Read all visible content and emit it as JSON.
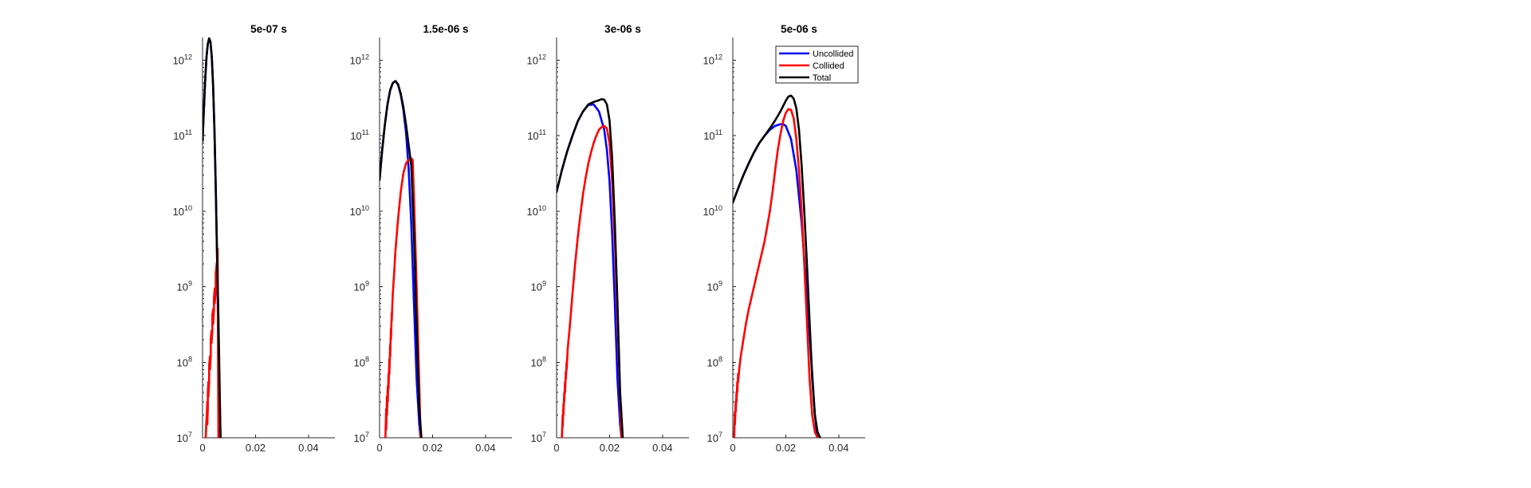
{
  "chart_data": [
    {
      "type": "line",
      "title": "5e-07 s",
      "xlabel": "",
      "ylabel": "",
      "xlim": [
        0,
        0.05
      ],
      "ylim": [
        10000000.0,
        2000000000000.0
      ],
      "yscale": "log",
      "grid": false,
      "xticks": [
        "0",
        "0.02",
        "0.04"
      ],
      "xtick_values": [
        0,
        0.02,
        0.04
      ],
      "yticks": [
        "10",
        "10",
        "10",
        "10",
        "10",
        "10"
      ],
      "ytick_exponents": [
        "7",
        "8",
        "9",
        "10",
        "11",
        "12"
      ],
      "ytick_values": [
        10000000.0,
        100000000.0,
        1000000000.0,
        10000000000.0,
        100000000000.0,
        1000000000000.0
      ],
      "series": [
        {
          "color": "#0000ff",
          "x": [
            0,
            0.0005,
            0.001,
            0.0015,
            0.002,
            0.0025,
            0.003,
            0.0035,
            0.004,
            0.0045,
            0.005,
            0.0055,
            0.006,
            0.0065,
            0.0068
          ],
          "y": [
            85000000000.0,
            220000000000.0,
            550000000000.0,
            1100000000000.0,
            1650000000000.0,
            1950000000000.0,
            1750000000000.0,
            1100000000000.0,
            450000000000.0,
            120000000000.0,
            20000000000.0,
            2200000000.0,
            150000000.0,
            25000000.0,
            10000000.0
          ]
        },
        {
          "color": "#ff0000",
          "x": [
            0.0012,
            0.0014,
            0.0016,
            0.0018,
            0.0018,
            0.002,
            0.002,
            0.0022,
            0.0022,
            0.0025,
            0.0025,
            0.0028,
            0.0028,
            0.0031,
            0.0031,
            0.0034,
            0.0034,
            0.0037,
            0.0037,
            0.004,
            0.004,
            0.0043,
            0.0043,
            0.0046,
            0.0046,
            0.005,
            0.005,
            0.0054,
            0.0054,
            0.0057,
            0.006
          ],
          "y": [
            10000000.0,
            15000000.0,
            20000000.0,
            30000000.0,
            15000000.0,
            25000000.0,
            40000000.0,
            55000000.0,
            35000000.0,
            55000000.0,
            90000000.0,
            120000000.0,
            80000000.0,
            120000000.0,
            200000000.0,
            260000000.0,
            180000000.0,
            260000000.0,
            420000000.0,
            500000000.0,
            320000000.0,
            480000000.0,
            700000000.0,
            950000000.0,
            600000000.0,
            900000000.0,
            1500000000.0,
            2100000000.0,
            1300000000.0,
            3200000000.0,
            10000000.0
          ]
        },
        {
          "color": "#000000",
          "x": [
            0,
            0.0005,
            0.001,
            0.0015,
            0.002,
            0.0025,
            0.003,
            0.0035,
            0.004,
            0.0045,
            0.005,
            0.0055,
            0.006,
            0.0065,
            0.0068
          ],
          "y": [
            85000000000.0,
            220000000000.0,
            550000000000.0,
            1100000000000.0,
            1650000000000.0,
            1950000000000.0,
            1750000000000.0,
            1100000000000.0,
            450000000000.0,
            120000000000.0,
            20000000000.0,
            2500000000.0,
            400000000.0,
            40000000.0,
            10000000.0
          ]
        }
      ]
    },
    {
      "type": "line",
      "title": "1.5e-06 s",
      "xlabel": "",
      "ylabel": "",
      "xlim": [
        0,
        0.05
      ],
      "ylim": [
        10000000.0,
        2000000000000.0
      ],
      "yscale": "log",
      "grid": false,
      "xticks": [
        "0",
        "0.02",
        "0.04"
      ],
      "xtick_values": [
        0,
        0.02,
        0.04
      ],
      "yticks": [
        "10",
        "10",
        "10",
        "10",
        "10",
        "10"
      ],
      "ytick_exponents": [
        "7",
        "8",
        "9",
        "10",
        "11",
        "12"
      ],
      "ytick_values": [
        10000000.0,
        100000000.0,
        1000000000.0,
        10000000000.0,
        100000000000.0,
        1000000000000.0
      ],
      "series": [
        {
          "color": "#0000ff",
          "x": [
            0,
            0.001,
            0.002,
            0.003,
            0.004,
            0.005,
            0.006,
            0.007,
            0.008,
            0.009,
            0.01,
            0.011,
            0.012,
            0.013,
            0.014,
            0.015,
            0.0155
          ],
          "y": [
            26000000000.0,
            65000000000.0,
            140000000000.0,
            260000000000.0,
            400000000000.0,
            500000000000.0,
            530000000000.0,
            470000000000.0,
            350000000000.0,
            220000000000.0,
            110000000000.0,
            36000000000.0,
            6500000000.0,
            600000000.0,
            60000000.0,
            15000000.0,
            10000000.0
          ]
        },
        {
          "color": "#ff0000",
          "x": [
            0.0022,
            0.0025,
            0.0025,
            0.0028,
            0.0028,
            0.0031,
            0.0031,
            0.0034,
            0.0034,
            0.0037,
            0.0037,
            0.004,
            0.004,
            0.0043,
            0.0043,
            0.0046,
            0.0046,
            0.005,
            0.0055,
            0.006,
            0.007,
            0.008,
            0.009,
            0.01,
            0.011,
            0.012,
            0.0125,
            0.013,
            0.014,
            0.015,
            0.0155
          ],
          "y": [
            10000000.0,
            24000000.0,
            13000000.0,
            35000000.0,
            20000000.0,
            48000000.0,
            30000000.0,
            70000000.0,
            45000000.0,
            110000000.0,
            70000000.0,
            170000000.0,
            120000000.0,
            280000000.0,
            200000000.0,
            450000000.0,
            350000000.0,
            800000000.0,
            1500000000.0,
            3000000000.0,
            8000000000.0,
            18000000000.0,
            32000000000.0,
            43000000000.0,
            48000000000.0,
            50000000000.0,
            48000000000.0,
            15000000000.0,
            1000000000.0,
            50000000.0,
            10000000.0
          ]
        },
        {
          "color": "#000000",
          "x": [
            0,
            0.001,
            0.002,
            0.003,
            0.004,
            0.005,
            0.006,
            0.007,
            0.008,
            0.009,
            0.01,
            0.011,
            0.012,
            0.013,
            0.014,
            0.015,
            0.0158
          ],
          "y": [
            26000000000.0,
            65000000000.0,
            140000000000.0,
            260000000000.0,
            400000000000.0,
            500000000000.0,
            530000000000.0,
            480000000000.0,
            360000000000.0,
            240000000000.0,
            140000000000.0,
            75000000000.0,
            40000000000.0,
            5000000000.0,
            300000000.0,
            25000000.0,
            10000000.0
          ]
        }
      ]
    },
    {
      "type": "line",
      "title": "3e-06 s",
      "xlabel": "",
      "ylabel": "",
      "xlim": [
        0,
        0.05
      ],
      "ylim": [
        10000000.0,
        2000000000000.0
      ],
      "yscale": "log",
      "grid": false,
      "xticks": [
        "0",
        "0.02",
        "0.04"
      ],
      "xtick_values": [
        0,
        0.02,
        0.04
      ],
      "yticks": [
        "10",
        "10",
        "10",
        "10",
        "10",
        "10"
      ],
      "ytick_exponents": [
        "7",
        "8",
        "9",
        "10",
        "11",
        "12"
      ],
      "ytick_values": [
        10000000.0,
        100000000.0,
        1000000000.0,
        10000000000.0,
        100000000000.0,
        1000000000000.0
      ],
      "series": [
        {
          "color": "#0000ff",
          "x": [
            0,
            0.002,
            0.004,
            0.006,
            0.008,
            0.01,
            0.012,
            0.014,
            0.016,
            0.018,
            0.019,
            0.02,
            0.021,
            0.022,
            0.023,
            0.024,
            0.0245
          ],
          "y": [
            18000000000.0,
            35000000000.0,
            62000000000.0,
            100000000000.0,
            155000000000.0,
            210000000000.0,
            255000000000.0,
            260000000000.0,
            210000000000.0,
            120000000000.0,
            65000000000.0,
            25000000000.0,
            5000000000.0,
            600000000.0,
            60000000.0,
            15000000.0,
            10000000.0
          ]
        },
        {
          "color": "#ff0000",
          "x": [
            0.002,
            0.0023,
            0.0023,
            0.0026,
            0.0026,
            0.0029,
            0.0029,
            0.0032,
            0.0032,
            0.0035,
            0.0035,
            0.0038,
            0.0038,
            0.0042,
            0.005,
            0.006,
            0.007,
            0.008,
            0.009,
            0.01,
            0.011,
            0.012,
            0.013,
            0.014,
            0.015,
            0.016,
            0.017,
            0.018,
            0.019,
            0.02,
            0.021,
            0.022,
            0.023,
            0.0245
          ],
          "y": [
            10000000.0,
            20000000.0,
            14000000.0,
            28000000.0,
            20000000.0,
            40000000.0,
            30000000.0,
            55000000.0,
            40000000.0,
            75000000.0,
            60000000.0,
            100000000.0,
            80000000.0,
            150000000.0,
            300000000.0,
            800000000.0,
            2000000000.0,
            4500000000.0,
            9000000000.0,
            17000000000.0,
            28000000000.0,
            43000000000.0,
            60000000000.0,
            80000000000.0,
            100000000000.0,
            120000000000.0,
            130000000000.0,
            135000000000.0,
            125000000000.0,
            80000000000.0,
            25000000000.0,
            4000000000.0,
            400000000.0,
            10000000.0
          ]
        },
        {
          "color": "#000000",
          "x": [
            0,
            0.002,
            0.004,
            0.006,
            0.008,
            0.01,
            0.012,
            0.014,
            0.016,
            0.017,
            0.018,
            0.019,
            0.02,
            0.021,
            0.022,
            0.023,
            0.024,
            0.025
          ],
          "y": [
            18000000000.0,
            35000000000.0,
            62000000000.0,
            100000000000.0,
            155000000000.0,
            210000000000.0,
            260000000000.0,
            280000000000.0,
            295000000000.0,
            305000000000.0,
            300000000000.0,
            260000000000.0,
            160000000000.0,
            50000000000.0,
            7000000000.0,
            600000000.0,
            40000000.0,
            10000000.0
          ]
        }
      ]
    },
    {
      "type": "line",
      "title": "5e-06 s",
      "xlabel": "",
      "ylabel": "",
      "xlim": [
        0,
        0.05
      ],
      "ylim": [
        10000000.0,
        2000000000000.0
      ],
      "yscale": "log",
      "grid": false,
      "legend": "top-right",
      "xticks": [
        "0",
        "0.02",
        "0.04"
      ],
      "xtick_values": [
        0,
        0.02,
        0.04
      ],
      "yticks": [
        "10",
        "10",
        "10",
        "10",
        "10",
        "10"
      ],
      "ytick_exponents": [
        "7",
        "8",
        "9",
        "10",
        "11",
        "12"
      ],
      "ytick_values": [
        10000000.0,
        100000000.0,
        1000000000.0,
        10000000000.0,
        100000000000.0,
        1000000000000.0
      ],
      "series": [
        {
          "name": "Uncollided",
          "color": "#0000ff",
          "x": [
            0,
            0.002,
            0.004,
            0.006,
            0.008,
            0.01,
            0.012,
            0.014,
            0.016,
            0.018,
            0.019,
            0.02,
            0.022,
            0.024,
            0.026,
            0.028,
            0.03,
            0.031,
            0.032
          ],
          "y": [
            13000000000.0,
            20000000000.0,
            30000000000.0,
            43000000000.0,
            60000000000.0,
            80000000000.0,
            100000000000.0,
            120000000000.0,
            135000000000.0,
            142000000000.0,
            142000000000.0,
            135000000000.0,
            90000000000.0,
            35000000000.0,
            7000000000.0,
            800000000.0,
            70000000.0,
            20000000.0,
            10000000.0
          ]
        },
        {
          "name": "Collided",
          "color": "#ff0000",
          "x": [
            0.0005,
            0.0008,
            0.0008,
            0.0011,
            0.0011,
            0.0014,
            0.0014,
            0.0017,
            0.0017,
            0.002,
            0.002,
            0.0025,
            0.003,
            0.004,
            0.005,
            0.006,
            0.008,
            0.01,
            0.012,
            0.014,
            0.015,
            0.016,
            0.017,
            0.018,
            0.019,
            0.02,
            0.021,
            0.022,
            0.023,
            0.024,
            0.025,
            0.026,
            0.027,
            0.028,
            0.029,
            0.03,
            0.031,
            0.032
          ],
          "y": [
            10000000.0,
            22000000.0,
            15000000.0,
            30000000.0,
            22000000.0,
            40000000.0,
            30000000.0,
            55000000.0,
            40000000.0,
            70000000.0,
            55000000.0,
            85000000.0,
            120000000.0,
            200000000.0,
            330000000.0,
            500000000.0,
            1000000000.0,
            2000000000.0,
            4000000000.0,
            10000000000.0,
            18000000000.0,
            35000000000.0,
            65000000000.0,
            105000000000.0,
            155000000000.0,
            200000000000.0,
            225000000000.0,
            220000000000.0,
            170000000000.0,
            90000000000.0,
            35000000000.0,
            10000000000.0,
            2000000000.0,
            350000000.0,
            60000000.0,
            20000000.0,
            12000000.0,
            10000000.0
          ]
        },
        {
          "name": "Total",
          "color": "#000000",
          "x": [
            0,
            0.002,
            0.004,
            0.006,
            0.008,
            0.01,
            0.012,
            0.014,
            0.016,
            0.018,
            0.02,
            0.021,
            0.022,
            0.023,
            0.024,
            0.025,
            0.026,
            0.027,
            0.028,
            0.029,
            0.03,
            0.031,
            0.032,
            0.033
          ],
          "y": [
            13000000000.0,
            20000000000.0,
            30000000000.0,
            43000000000.0,
            60000000000.0,
            80000000000.0,
            100000000000.0,
            125000000000.0,
            160000000000.0,
            210000000000.0,
            290000000000.0,
            330000000000.0,
            340000000000.0,
            310000000000.0,
            230000000000.0,
            120000000000.0,
            40000000000.0,
            10000000000.0,
            2000000000.0,
            350000000.0,
            60000000.0,
            20000000.0,
            12000000.0,
            10000000.0
          ]
        }
      ]
    }
  ]
}
